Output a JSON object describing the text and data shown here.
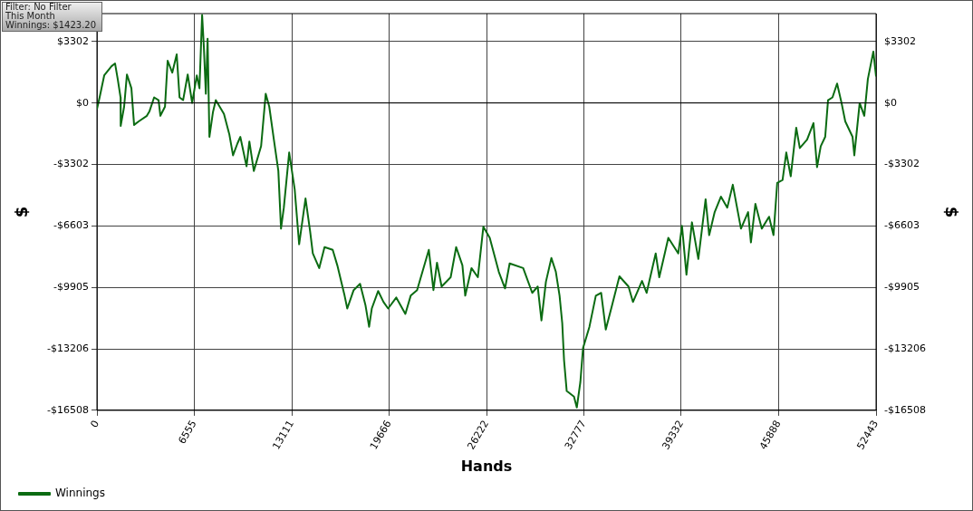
{
  "chart_data": {
    "type": "line",
    "xlabel": "Hands",
    "ylabel": "$",
    "y2label": "$",
    "annotations": [
      "Filter: No Filter",
      "This Month",
      "Winnings: $1423.20"
    ],
    "x": [
      0,
      180,
      490,
      980,
      1220,
      1400,
      1590,
      1600,
      1830,
      2020,
      2320,
      2500,
      2810,
      3360,
      3540,
      3850,
      4150,
      4270,
      4580,
      4760,
      5070,
      5370,
      5560,
      5800,
      6110,
      6410,
      6720,
      6900,
      7080,
      7200,
      7330,
      7450,
      7570,
      7810,
      8000,
      8550,
      8910,
      9160,
      9460,
      9650,
      10070,
      10260,
      10560,
      11050,
      11360,
      11600,
      11910,
      12210,
      12390,
      12580,
      12940,
      13310,
      13610,
      14040,
      14350,
      14530,
      14960,
      15320,
      15870,
      16180,
      16670,
      16850,
      17280,
      17710,
      18070,
      18320,
      18500,
      18930,
      19290,
      19600,
      20150,
      20760,
      21120,
      21550,
      21980,
      22340,
      22650,
      22890,
      23200,
      23810,
      24180,
      24600,
      24790,
      25210,
      25640,
      26010,
      26440,
      27050,
      27470,
      27780,
      28690,
      29300,
      29670,
      29920,
      30220,
      30590,
      30890,
      31140,
      31320,
      31440,
      31620,
      32110,
      32300,
      32540,
      32720,
      33150,
      33580,
      33940,
      34250,
      34680,
      35170,
      35780,
      36080,
      36690,
      37000,
      37610,
      37850,
      38220,
      38460,
      39130,
      39380,
      39680,
      40050,
      40480,
      40970,
      41210,
      41580,
      42000,
      42430,
      42800,
      43350,
      43830,
      44020,
      44320,
      44750,
      45240,
      45540,
      45790,
      46150,
      46400,
      46700,
      47070,
      47310,
      47800,
      48230,
      48470,
      48720,
      49020,
      49210,
      49510,
      49820,
      50120,
      50370,
      50860,
      50980,
      51340,
      51650,
      51890,
      52260,
      52443
    ],
    "series": [
      {
        "name": "Winnings",
        "color": "#0b6b12",
        "values": [
          -340,
          300,
          1480,
          1970,
          2120,
          1280,
          300,
          -1230,
          -200,
          1530,
          790,
          -1180,
          -990,
          -690,
          -440,
          300,
          150,
          -690,
          -200,
          2270,
          1630,
          2610,
          300,
          150,
          1530,
          0,
          1480,
          790,
          4730,
          2960,
          490,
          3450,
          -1820,
          -490,
          150,
          -590,
          -1680,
          -2810,
          -2170,
          -1820,
          -3400,
          -2070,
          -3650,
          -2320,
          490,
          -200,
          -1970,
          -3650,
          -6750,
          -5620,
          -2660,
          -4630,
          -7590,
          -5130,
          -6900,
          -8080,
          -8870,
          -7740,
          -7890,
          -8720,
          -10350,
          -11040,
          -10050,
          -9710,
          -10840,
          -12020,
          -11040,
          -10100,
          -10690,
          -11040,
          -10450,
          -11330,
          -10350,
          -10050,
          -8870,
          -7890,
          -10050,
          -8580,
          -9860,
          -9360,
          -7740,
          -8720,
          -10350,
          -8870,
          -9360,
          -6650,
          -7240,
          -9070,
          -9960,
          -8620,
          -8870,
          -10200,
          -9860,
          -11680,
          -9610,
          -8330,
          -9070,
          -10350,
          -11830,
          -13800,
          -15470,
          -15770,
          -16360,
          -14980,
          -13160,
          -12020,
          -10350,
          -10200,
          -12170,
          -10840,
          -9310,
          -9860,
          -10690,
          -9560,
          -10200,
          -8080,
          -9360,
          -8080,
          -7240,
          -8080,
          -6600,
          -9220,
          -6410,
          -8380,
          -5170,
          -7100,
          -5860,
          -5030,
          -5620,
          -4390,
          -6750,
          -5860,
          -7490,
          -5420,
          -6750,
          -6110,
          -7100,
          -4290,
          -4140,
          -2660,
          -3940,
          -1330,
          -2420,
          -1970,
          -1080,
          -3450,
          -2320,
          -1820,
          150,
          300,
          1040,
          0,
          -990,
          -1820,
          -2810,
          0,
          -690,
          1280,
          2760,
          1420
        ]
      }
    ],
    "ylim": [
      -16508,
      4800
    ],
    "yticks": [
      {
        "value": -16508,
        "label": "-$16508"
      },
      {
        "value": -13206,
        "label": "-$13206"
      },
      {
        "value": -9905,
        "label": "-$9905"
      },
      {
        "value": -6603,
        "label": "-$6603"
      },
      {
        "value": -3302,
        "label": "-$3302"
      },
      {
        "value": 0,
        "label": "$0"
      },
      {
        "value": 3302,
        "label": "$3302"
      }
    ],
    "y2lim": [
      -16508,
      4800
    ],
    "y2ticks": [
      {
        "value": -16508,
        "label": "-$16508"
      },
      {
        "value": -13206,
        "label": "-$13206"
      },
      {
        "value": -9905,
        "label": "-$9905"
      },
      {
        "value": -6603,
        "label": "-$6603"
      },
      {
        "value": -3302,
        "label": "-$3302"
      },
      {
        "value": 0,
        "label": "$0"
      },
      {
        "value": 3302,
        "label": "$3302"
      }
    ],
    "xlim": [
      0,
      52443
    ],
    "xticks": [
      0,
      6555,
      13111,
      19666,
      26222,
      32777,
      39332,
      45888,
      52443
    ],
    "ref_lines": [
      {
        "axis": "y",
        "value": 0,
        "color": "#000000"
      }
    ],
    "grid": true,
    "legend": "bottom left",
    "marker": "none",
    "line_style": "solid"
  }
}
